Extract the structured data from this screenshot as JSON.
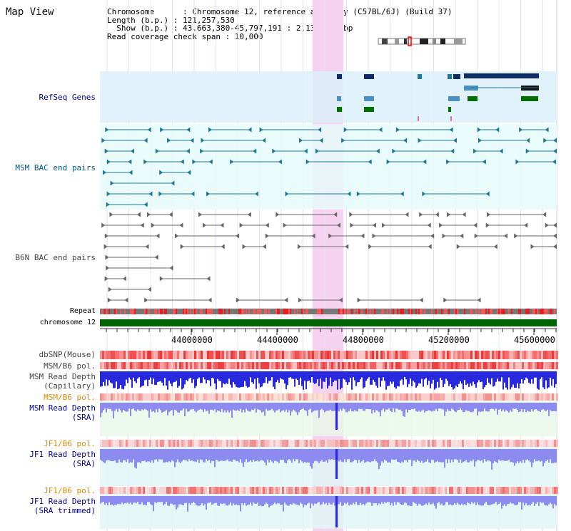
{
  "title": "Map View",
  "info": {
    "line1": "Chromosome      : Chromosome 12, reference assembly (C57BL/6J) (Build 37)",
    "line2": "Length (b.p.) : 121,257,530",
    "line3": "  Show (b.p.) : 43,663,380-45,797,191 : 2,133,812 bp",
    "line4": "Read coverage check span : 10,000"
  },
  "tracks": {
    "refseq": "RefSeq Genes",
    "msm_bac": "MSM BAC end pairs",
    "b6n_bac": "B6N BAC end pairs",
    "repeat": "Repeat",
    "chromosome": "chromosome 12",
    "dbsnp": "dbSNP(Mouse)",
    "msm_pol1": "MSM/B6 pol.",
    "msm_rd_cap1": "MSM Read Depth",
    "msm_rd_cap2": "(Capillary)",
    "msm_pol2": "MSM/B6 pol.",
    "msm_rd_sra1": "MSM Read Depth",
    "msm_rd_sra2": "(SRA)",
    "jf1_pol1": "JF1/B6 pol.",
    "jf1_rd1": "JF1 Read Depth",
    "jf1_rd2": "(SRA)",
    "jf1_pol2": "JF1/B6 pol.",
    "jf1_rdt1": "JF1 Read Depth",
    "jf1_rdt2": "(SRA trimmed)"
  },
  "axis_ticks": [
    "44000000",
    "44400000",
    "44800000",
    "45200000",
    "45600000"
  ],
  "colors": {
    "refseq_bg": "#dcf0fa",
    "msm_bg": "#e6fafa",
    "highlight": "#f5d2f0",
    "navy": "#0f2d64",
    "teal": "#1e7896",
    "green_gene": "#006e00",
    "chromosome": "#006400",
    "repeat_red": "#e62020",
    "depth_blue": "#2828dc",
    "sra_blue": "#8c8cf0",
    "label_blue": "#00008b",
    "label_teal": "#005a82",
    "label_orange": "#dc8c00"
  }
}
